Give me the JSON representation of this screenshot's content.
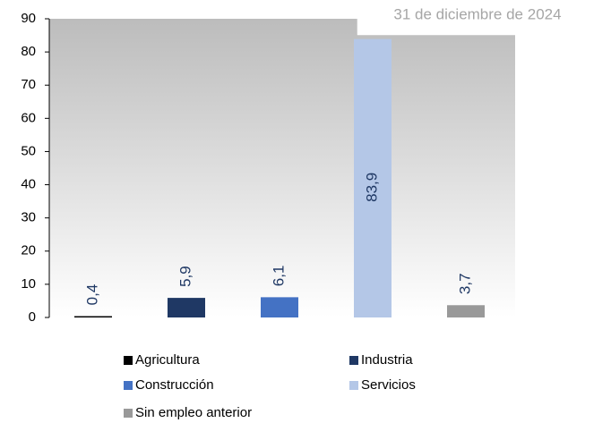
{
  "chart_data": {
    "type": "bar",
    "annotation": "31 de diciembre de 2024",
    "series": [
      {
        "name": "Agricultura",
        "color": "#000000",
        "values": [
          0.4
        ],
        "value_labels": [
          "0,4"
        ]
      },
      {
        "name": "Industria",
        "color": "#1f3864",
        "values": [
          5.9
        ],
        "value_labels": [
          "5,9"
        ]
      },
      {
        "name": "Construcción",
        "color": "#4472c4",
        "values": [
          6.1
        ],
        "value_labels": [
          "6,1"
        ]
      },
      {
        "name": "Servicios",
        "color": "#b4c7e7",
        "values": [
          83.9
        ],
        "value_labels": [
          "83,9"
        ]
      },
      {
        "name": "Sin empleo anterior",
        "color": "#999999",
        "values": [
          3.7
        ],
        "value_labels": [
          "3,7"
        ]
      }
    ],
    "ylim": [
      0,
      90
    ],
    "yticks": [
      0,
      10,
      20,
      30,
      40,
      50,
      60,
      70,
      80,
      90
    ],
    "grid": false,
    "legend": "bottom"
  }
}
